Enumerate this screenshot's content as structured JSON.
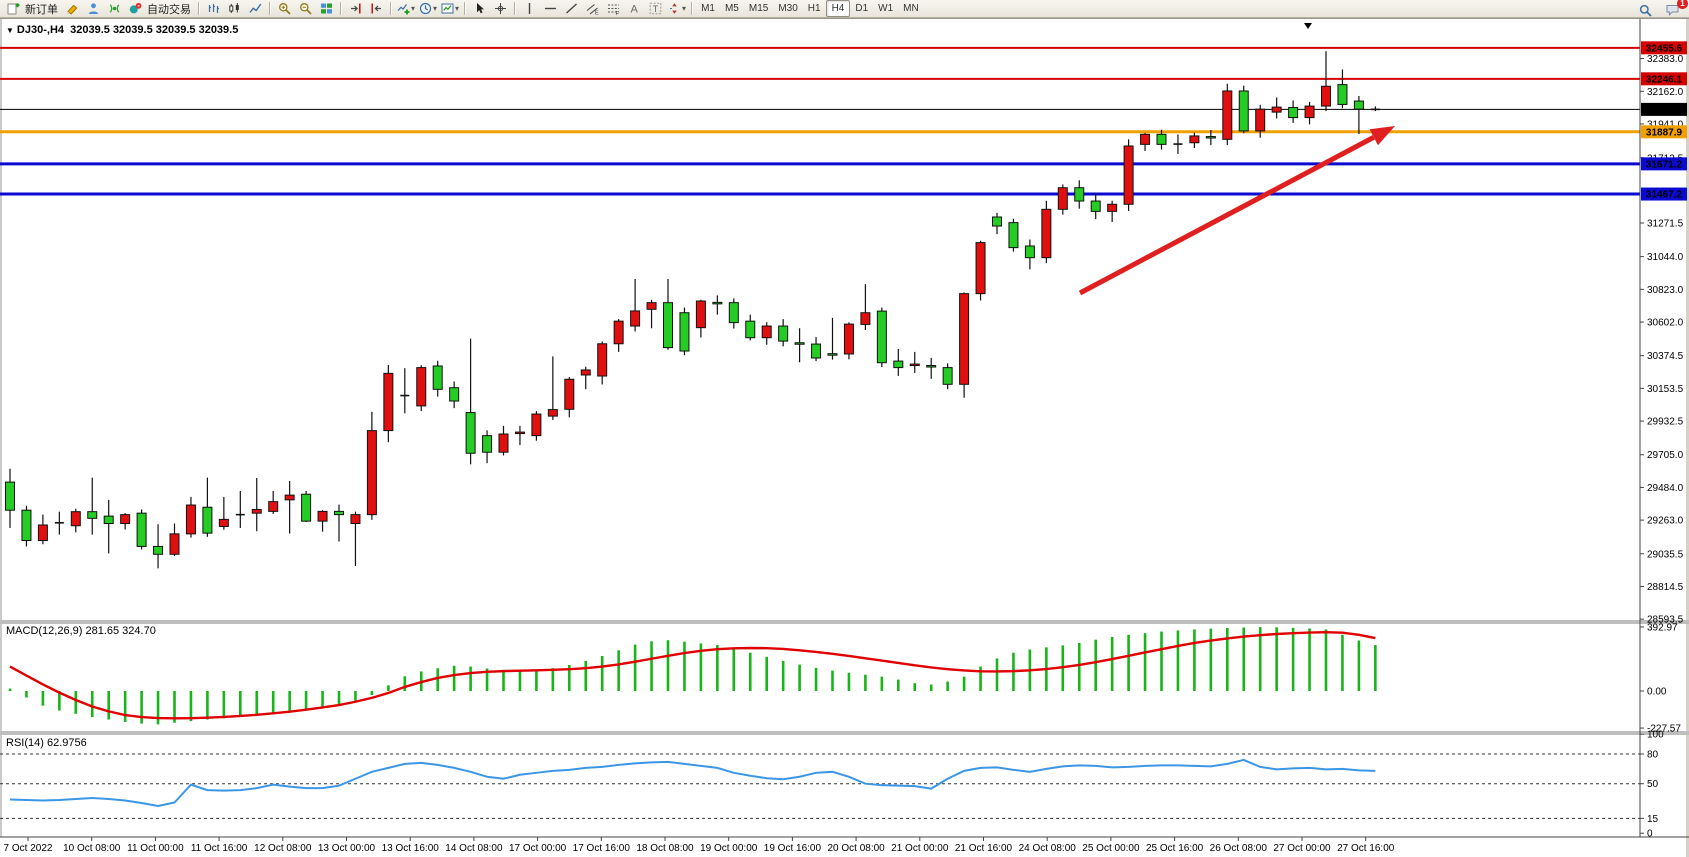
{
  "app": {
    "toolbar": {
      "groups": [
        {
          "name": "trade",
          "items": [
            {
              "name": "new-order-button",
              "icon": "new-order-icon",
              "label": "新订单"
            },
            {
              "name": "highlighter-button",
              "icon": "highlighter-icon"
            },
            {
              "name": "profile-button",
              "icon": "profile-icon"
            },
            {
              "name": "signals-button",
              "icon": "signal-icon"
            },
            {
              "name": "autotrading-button",
              "icon": "autotrade-icon",
              "label": "自动交易"
            }
          ]
        },
        {
          "name": "chart-type",
          "items": [
            {
              "name": "bar-chart-button",
              "icon": "chart-bars-icon"
            },
            {
              "name": "candlestick-chart-button",
              "icon": "chart-candles-icon"
            },
            {
              "name": "line-chart-button",
              "icon": "chart-line-icon"
            }
          ]
        },
        {
          "name": "zoom",
          "items": [
            {
              "name": "zoom-in-button",
              "icon": "zoom-in-icon"
            },
            {
              "name": "zoom-out-button",
              "icon": "zoom-out-icon"
            },
            {
              "name": "tile-windows-button",
              "icon": "tile-windows-icon"
            }
          ]
        },
        {
          "name": "scroll",
          "items": [
            {
              "name": "chart-shift-button",
              "icon": "chart-shift-icon"
            },
            {
              "name": "auto-scroll-button",
              "icon": "auto-scroll-icon"
            }
          ]
        },
        {
          "name": "objects",
          "items": [
            {
              "name": "indicators-button",
              "icon": "indicators-icon",
              "dropdown": true
            },
            {
              "name": "periods-button",
              "icon": "clock-icon",
              "dropdown": true
            },
            {
              "name": "templates-button",
              "icon": "template-icon",
              "dropdown": true
            }
          ]
        },
        {
          "name": "pointer",
          "items": [
            {
              "name": "cursor-button",
              "icon": "cursor-icon"
            },
            {
              "name": "crosshair-button",
              "icon": "crosshair-icon"
            }
          ]
        },
        {
          "name": "drawing",
          "items": [
            {
              "name": "vertical-line-button",
              "icon": "vline-icon"
            },
            {
              "name": "horizontal-line-button",
              "icon": "hline-icon"
            },
            {
              "name": "trendline-button",
              "icon": "trendline-icon"
            },
            {
              "name": "equidistant-channel-button",
              "icon": "channel-icon"
            },
            {
              "name": "fibonacci-button",
              "icon": "fibonacci-icon"
            },
            {
              "name": "text-button",
              "icon": "text-icon"
            },
            {
              "name": "text-label-button",
              "icon": "text-label-icon"
            },
            {
              "name": "arrows-button",
              "icon": "arrows-icon",
              "dropdown": true
            }
          ]
        }
      ],
      "timeframes": [
        "M1",
        "M5",
        "M15",
        "M30",
        "H1",
        "H4",
        "D1",
        "W1",
        "MN"
      ],
      "active_timeframe": "H4",
      "notification_count": "1"
    }
  },
  "chart": {
    "symbol_period": "DJ30-,H4",
    "ohlc_readout": "32039.5 32039.5 32039.5 32039.5",
    "macd_label": "MACD(12,26,9) 281.65 324.70",
    "rsi_label": "RSI(14) 62.9756"
  },
  "chart_data": {
    "type": "candlestick",
    "symbol": "DJ30-",
    "period": "H4",
    "ylim": [
      28581,
      32650.5
    ],
    "colors": {
      "bull": "#e01010",
      "bear": "#24cc24",
      "doji": "#111111",
      "wick": "#111111",
      "macd_hist": "#17b517",
      "macd_signal": "#e00000",
      "rsi_line": "#3c96e6",
      "level_red": "#d60000",
      "level_orange": "#f0a000",
      "level_blue": "#0a0ad0",
      "price_line": "#000000",
      "arrow": "#e02020"
    },
    "hlines": [
      {
        "price": 32455.6,
        "label": "32455.6",
        "color": "#d60000",
        "width": 2
      },
      {
        "price": 32246.1,
        "label": "32246.1",
        "color": "#d60000",
        "width": 2
      },
      {
        "price": 32039.5,
        "label": "32039.5",
        "color": "#000000",
        "width": 1
      },
      {
        "price": 31887.9,
        "label": "31887.9",
        "color": "#f0a000",
        "width": 3
      },
      {
        "price": 31671.2,
        "label": "31671.2",
        "color": "#0a0ad0",
        "width": 3
      },
      {
        "price": 31467.2,
        "label": "31467.2",
        "color": "#0a0ad0",
        "width": 3
      }
    ],
    "price_axis_ticks": [
      32383.0,
      32162.0,
      31941.0,
      31712.5,
      31271.5,
      31044.0,
      30823.0,
      30602.0,
      30374.5,
      30153.5,
      29932.5,
      29705.0,
      29484.0,
      29263.0,
      29035.5,
      28814.5,
      28593.5
    ],
    "candles": {
      "ohlc": [
        [
          29520,
          29610,
          29210,
          29330
        ],
        [
          29330,
          29360,
          29085,
          29125
        ],
        [
          29125,
          29300,
          29100,
          29230
        ],
        [
          29245,
          29320,
          29165,
          29245
        ],
        [
          29225,
          29340,
          29180,
          29320
        ],
        [
          29320,
          29550,
          29165,
          29275
        ],
        [
          29290,
          29400,
          29038,
          29240
        ],
        [
          29240,
          29310,
          29200,
          29300
        ],
        [
          29310,
          29335,
          29065,
          29085
        ],
        [
          29085,
          29235,
          28937,
          29032
        ],
        [
          29032,
          29240,
          29020,
          29170
        ],
        [
          29170,
          29420,
          29145,
          29365
        ],
        [
          29350,
          29550,
          29150,
          29175
        ],
        [
          29220,
          29420,
          29198,
          29268
        ],
        [
          29300,
          29460,
          29210,
          29300
        ],
        [
          29310,
          29548,
          29188,
          29335
        ],
        [
          29322,
          29460,
          29305,
          29388
        ],
        [
          29400,
          29528,
          29172,
          29432
        ],
        [
          29438,
          29460,
          29250,
          29256
        ],
        [
          29256,
          29330,
          29185,
          29322
        ],
        [
          29322,
          29368,
          29118,
          29300
        ],
        [
          29240,
          29320,
          28953,
          29300
        ],
        [
          29300,
          29995,
          29265,
          29868
        ],
        [
          29868,
          30312,
          29790,
          30255
        ],
        [
          30105,
          30290,
          29985,
          30105
        ],
        [
          30035,
          30310,
          30000,
          30294
        ],
        [
          30305,
          30340,
          30098,
          30147
        ],
        [
          30158,
          30200,
          30020,
          30068
        ],
        [
          29990,
          30490,
          29640,
          29715
        ],
        [
          29834,
          29870,
          29648,
          29722
        ],
        [
          29722,
          29900,
          29700,
          29845
        ],
        [
          29856,
          29900,
          29770,
          29858
        ],
        [
          29834,
          30000,
          29800,
          29980
        ],
        [
          29966,
          30370,
          29940,
          30010
        ],
        [
          30012,
          30230,
          29958,
          30215
        ],
        [
          30244,
          30300,
          30148,
          30278
        ],
        [
          30237,
          30470,
          30180,
          30455
        ],
        [
          30455,
          30622,
          30400,
          30608
        ],
        [
          30575,
          30893,
          30538,
          30677
        ],
        [
          30688,
          30752,
          30560,
          30733
        ],
        [
          30733,
          30893,
          30415,
          30429
        ],
        [
          30665,
          30700,
          30378,
          30406
        ],
        [
          30564,
          30752,
          30498,
          30744
        ],
        [
          30735,
          30782,
          30652,
          30733
        ],
        [
          30733,
          30762,
          30558,
          30598
        ],
        [
          30608,
          30652,
          30478,
          30496
        ],
        [
          30496,
          30600,
          30448,
          30575
        ],
        [
          30575,
          30622,
          30438,
          30473
        ],
        [
          30462,
          30560,
          30330,
          30460
        ],
        [
          30453,
          30500,
          30338,
          30359
        ],
        [
          30388,
          30630,
          30348,
          30386
        ],
        [
          30386,
          30600,
          30350,
          30588
        ],
        [
          30586,
          30858,
          30548,
          30665
        ],
        [
          30676,
          30700,
          30298,
          30327
        ],
        [
          30338,
          30420,
          30238,
          30294
        ],
        [
          30315,
          30400,
          30258,
          30318
        ],
        [
          30308,
          30360,
          30218,
          30305
        ],
        [
          30294,
          30322,
          30148,
          30181
        ],
        [
          30181,
          30802,
          30090,
          30794
        ],
        [
          30794,
          31152,
          30748,
          31139
        ],
        [
          31312,
          31340,
          31196,
          31251
        ],
        [
          31274,
          31300,
          31078,
          31105
        ],
        [
          31116,
          31160,
          30958,
          31037
        ],
        [
          31037,
          31422,
          31000,
          31364
        ],
        [
          31364,
          31532,
          31328,
          31510
        ],
        [
          31510,
          31560,
          31368,
          31420
        ],
        [
          31420,
          31472,
          31298,
          31350
        ],
        [
          31350,
          31422,
          31278,
          31398
        ],
        [
          31398,
          31837,
          31353,
          31792
        ],
        [
          31803,
          31880,
          31758,
          31871
        ],
        [
          31871,
          31902,
          31768,
          31803
        ],
        [
          31805,
          31870,
          31738,
          31805
        ],
        [
          31814,
          31882,
          31778,
          31860
        ],
        [
          31856,
          31900,
          31798,
          31853
        ],
        [
          31837,
          32213,
          31798,
          32164
        ],
        [
          32164,
          32200,
          31878,
          31894
        ],
        [
          31894,
          32070,
          31848,
          32041
        ],
        [
          32021,
          32120,
          31978,
          32055
        ],
        [
          32052,
          32100,
          31948,
          31984
        ],
        [
          31984,
          32090,
          31938,
          32062
        ],
        [
          32062,
          32433,
          32028,
          32196
        ],
        [
          32207,
          32309,
          32048,
          32073
        ],
        [
          32096,
          32130,
          31873,
          32041
        ],
        [
          32040,
          32060,
          32028,
          32039.5
        ]
      ]
    },
    "macd": {
      "params": "12,26,9",
      "current_values": "281.65 324.70",
      "axis_values": [
        392.97,
        0,
        -227.57
      ],
      "axis_labels": [
        "392.97",
        "0.00",
        "-227.57"
      ],
      "histogram": [
        15,
        -40,
        -90,
        -120,
        -140,
        -160,
        -175,
        -190,
        -200,
        -205,
        -195,
        -185,
        -175,
        -168,
        -160,
        -150,
        -140,
        -128,
        -115,
        -100,
        -85,
        -60,
        -25,
        35,
        90,
        120,
        140,
        155,
        150,
        138,
        130,
        128,
        132,
        140,
        160,
        185,
        215,
        250,
        285,
        305,
        312,
        303,
        292,
        282,
        262,
        235,
        210,
        185,
        162,
        142,
        125,
        112,
        100,
        88,
        70,
        48,
        40,
        58,
        88,
        150,
        200,
        235,
        255,
        268,
        280,
        295,
        315,
        332,
        345,
        355,
        365,
        372,
        378,
        383,
        387,
        390,
        392,
        391,
        388,
        384,
        378,
        345,
        310,
        282
      ],
      "signal": [
        150,
        95,
        40,
        -10,
        -55,
        -95,
        -125,
        -148,
        -160,
        -166,
        -168,
        -167,
        -164,
        -159,
        -153,
        -146,
        -137,
        -127,
        -115,
        -101,
        -86,
        -66,
        -42,
        -12,
        25,
        55,
        80,
        98,
        110,
        118,
        122,
        125,
        127,
        130,
        134,
        140,
        150,
        163,
        180,
        198,
        216,
        233,
        247,
        257,
        262,
        264,
        263,
        258,
        250,
        240,
        228,
        215,
        201,
        187,
        172,
        158,
        145,
        134,
        126,
        121,
        120,
        122,
        127,
        135,
        146,
        160,
        177,
        196,
        216,
        237,
        257,
        277,
        295,
        310,
        323,
        334,
        343,
        350,
        355,
        359,
        361,
        358,
        345,
        325
      ]
    },
    "rsi": {
      "period": 14,
      "current": "62.9756",
      "levels": [
        80,
        50,
        15
      ],
      "axis_values": [
        100,
        80,
        50,
        15,
        0
      ],
      "axis_labels": [
        "100",
        "80",
        "50",
        "15",
        "0"
      ],
      "values": [
        34,
        33.5,
        33,
        33.5,
        34.5,
        35.5,
        34.5,
        33,
        30.5,
        27.5,
        31,
        49,
        43.5,
        43,
        43.5,
        45.5,
        49,
        47,
        45.5,
        45.5,
        48,
        55,
        62,
        66,
        70,
        71,
        69,
        66,
        62,
        57,
        55,
        59,
        61,
        63,
        64,
        66,
        67,
        69,
        70.5,
        71.5,
        72,
        70,
        68,
        66,
        61,
        58,
        55.5,
        54.5,
        57,
        61,
        62,
        57,
        50,
        48.5,
        48,
        47.5,
        45,
        55,
        63,
        66,
        66.5,
        64,
        62,
        65,
        67.5,
        68.5,
        68,
        66.5,
        67,
        68,
        68.5,
        68.5,
        68,
        67.5,
        70,
        74,
        67,
        64.5,
        65.5,
        66,
        64.5,
        65,
        63.5,
        63
      ]
    },
    "time_labels": [
      "7 Oct 2022",
      "10 Oct 08:00",
      "11 Oct 00:00",
      "11 Oct 16:00",
      "12 Oct 08:00",
      "13 Oct 00:00",
      "13 Oct 16:00",
      "14 Oct 08:00",
      "17 Oct 00:00",
      "17 Oct 16:00",
      "18 Oct 08:00",
      "19 Oct 00:00",
      "19 Oct 16:00",
      "20 Oct 08:00",
      "21 Oct 00:00",
      "21 Oct 16:00",
      "24 Oct 08:00",
      "25 Oct 00:00",
      "25 Oct 16:00",
      "26 Oct 08:00",
      "27 Oct 00:00",
      "27 Oct 16:00"
    ],
    "annotations": {
      "arrow": {
        "from": [
          1080,
          292
        ],
        "to": [
          1395,
          125
        ]
      },
      "marker_triangle_x": 1308
    }
  }
}
